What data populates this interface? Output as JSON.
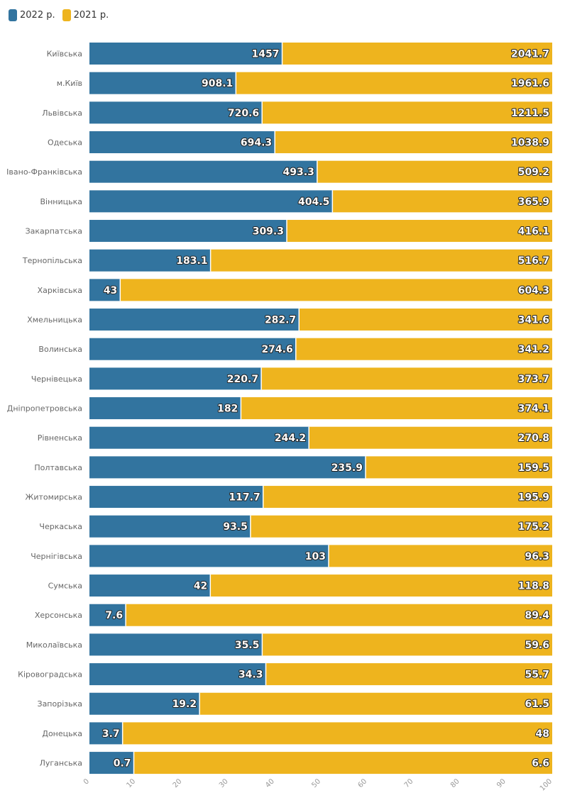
{
  "legend": [
    {
      "label": "2022 р.",
      "color": "#32749f"
    },
    {
      "label": "2021 р.",
      "color": "#eeb41e"
    }
  ],
  "chart_data": {
    "type": "bar",
    "orientation": "horizontal",
    "stacked": "percent",
    "categories": [
      "Київська",
      "м.Київ",
      "Львівська",
      "Одеська",
      "Івано-Франківська",
      "Вінницька",
      "Закарпатська",
      "Тернопільська",
      "Харківська",
      "Хмельницька",
      "Волинська",
      "Чернівецька",
      "Дніпропетровська",
      "Рівненська",
      "Полтавська",
      "Житомирська",
      "Черкаська",
      "Чернігівська",
      "Сумська",
      "Херсонська",
      "Миколаївська",
      "Кіровоградська",
      "Запорізька",
      "Донецька",
      "Луганська"
    ],
    "series": [
      {
        "name": "2022 р.",
        "color": "#32749f",
        "values": [
          1457,
          908.1,
          720.6,
          694.3,
          493.3,
          404.5,
          309.3,
          183.1,
          43,
          282.7,
          274.6,
          220.7,
          182,
          244.2,
          235.9,
          117.7,
          93.5,
          103,
          42,
          7.6,
          35.5,
          34.3,
          19.2,
          3.7,
          0.7
        ]
      },
      {
        "name": "2021 р.",
        "color": "#eeb41e",
        "values": [
          2041.7,
          1961.6,
          1211.5,
          1038.9,
          509.2,
          365.9,
          416.1,
          516.7,
          604.3,
          341.6,
          341.2,
          373.7,
          374.1,
          270.8,
          159.5,
          195.9,
          175.2,
          96.3,
          118.8,
          89.4,
          59.6,
          55.7,
          61.5,
          48,
          6.6
        ]
      }
    ],
    "xlim": [
      0,
      100
    ],
    "xticks": [
      0,
      10,
      20,
      30,
      40,
      50,
      60,
      70,
      80,
      90,
      100
    ],
    "grid": false,
    "legend_position": "top-left"
  }
}
